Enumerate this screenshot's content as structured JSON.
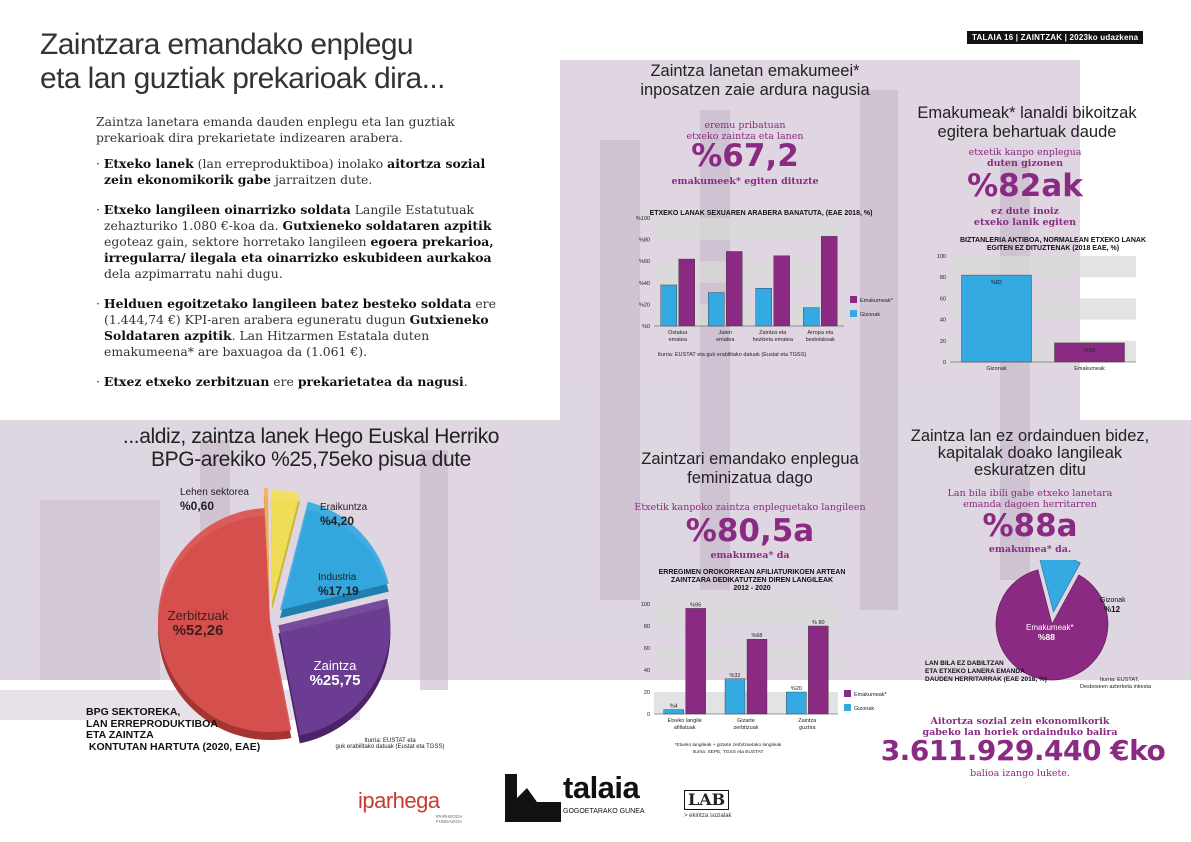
{
  "header": {
    "tag": "TALAIA 16 | ZAINTZAK | 2023ko udazkena"
  },
  "intro": {
    "title_line1": "Zaintzara emandako enplegu",
    "title_line2": "eta lan guztiak prekarioak dira...",
    "lead": "Zaintza lanetara emanda dauden enplegu eta lan guztiak prekarioak dira prekarietate indizearen arabera.",
    "b1": [
      {
        "t": "Etxeko lanek",
        "b": true
      },
      {
        "t": " (lan erreproduktiboa) inolako ",
        "b": false
      },
      {
        "t": "aitortza sozial zein ekonomikorik gabe",
        "b": true
      },
      {
        "t": " jarraitzen dute.",
        "b": false
      }
    ],
    "b2": [
      {
        "t": "Etxeko langileen oinarrizko soldata",
        "b": true
      },
      {
        "t": " Langile Estatutuak zehazturiko 1.080 €-koa da. ",
        "b": false
      },
      {
        "t": "Gutxieneko soldataren azpitik",
        "b": true
      },
      {
        "t": " egoteaz gain, sektore horretako langileen ",
        "b": false
      },
      {
        "t": "egoera prekarioa, irregularra/ ilegala eta oinarrizko eskubideen aurkakoa",
        "b": true
      },
      {
        "t": " dela azpimarratu nahi dugu.",
        "b": false
      }
    ],
    "b3": [
      {
        "t": "Helduen egoitzetako langileen batez besteko soldata",
        "b": true
      },
      {
        "t": " ere (1.444,74 €) KPI-aren arabera eguneratu dugun ",
        "b": false
      },
      {
        "t": "Gutxieneko Soldataren azpitik",
        "b": true
      },
      {
        "t": ". Lan Hitzarmen Estatala duten emakumeena* are baxuagoa da (1.061 €).",
        "b": false
      }
    ],
    "b4": [
      {
        "t": "Etxez etxeko zerbitzuan",
        "b": true
      },
      {
        "t": " ere ",
        "b": false
      },
      {
        "t": "prekarietatea da nagusi",
        "b": true
      },
      {
        "t": ".",
        "b": false
      }
    ]
  },
  "pie_section": {
    "title_line1": "...aldiz, zaintza lanek Hego Euskal Herriko",
    "title_line2": "BPG-arekiko %25,75eko pisua dute",
    "bottom_label": [
      "BPG SEKTOREKA,",
      "LAN ERREPRODUKTIBOA",
      "ETA ZAINTZA",
      " KONTUTAN HARTUTA (2020, EAE)"
    ],
    "source": [
      "Iturria:  EUSTAT eta",
      "guk erabilitako datuak (Eustat eta TGSS)"
    ]
  },
  "women_care": {
    "title_line1": "Zaintza lanetan emakumeei*",
    "title_line2": "inposatzen zaie ardura nagusia",
    "sub1": "eremu pribatuan",
    "sub2": "etxeko zaintza eta lanen",
    "big": "%67,2",
    "sub3": "emakumeek* egiten dituzte",
    "source": "Iturria:  EUSTAT eta guk erabilitako datuak (Eustat eta TGSS)"
  },
  "double_shift": {
    "title_line1": "Emakumeak* lanaldi bikoitzak",
    "title_line2": "egitera behartuak daude",
    "sub1": "etxetik kanpo enplegua",
    "sub2": "duten gizonen",
    "big": "%82ak",
    "sub3": "ez dute inoiz",
    "sub4": "etxeko lanik egiten"
  },
  "feminized": {
    "title_line1": "Zaintzari emandako enplegua",
    "title_line2": "feminizatua dago",
    "sub1": "Etxetik kanpoko zaintza enpleguetako langileen",
    "big": "%80,5a",
    "sub2": "emakumea* da",
    "footnote1": "*Etxeko langileak + gizarte zerbitzuetako langileak",
    "footnote2": "Iturria:  SEPE, TGSS eta EUSTAT"
  },
  "unpaid": {
    "title_line1": "Zaintza lan ez ordainduen bidez,",
    "title_line2": "kapitalak doako langileak",
    "title_line3": "eskuratzen ditu",
    "sub1": "Lan bila ibili gabe etxeko lanetara",
    "sub2": "emanda dagoen herritarren",
    "big": "%88a",
    "sub3": "emakumea* da.",
    "caption": [
      "LAN BILA EZ DABILTZAN",
      "ETA ETXEKO LANERA EMANDA",
      "DAUDEN HERRITARRAK (EAE 2018, %)"
    ],
    "source1": "Iturria: EUSTAT,",
    "source2": "Desboseen azterketa inkesta"
  },
  "value": {
    "line1": "Aitortza sozial zein ekonomikorik",
    "line2": "gabeko lan horiek ordainduko balira",
    "amount": "3.611.929.440 €ko",
    "line3": "balioa izango lukete."
  },
  "logos": {
    "iparhegoa_a": "iparheg",
    "iparhegoa_b": "a",
    "iparhegoa_small": [
      "IPARHEGOA",
      "FUNDAZIOA"
    ],
    "talaia": "talaia",
    "talaia_sub": "GOGOETARAKO GUNEA",
    "lab": "LAB",
    "lab_sub": "> ekintza sozialak"
  },
  "colors": {
    "purple": "#8a2a82",
    "blue": "#35a9e1",
    "red": "#d9534f",
    "yellow": "#f3e05a",
    "orange": "#f2b25a",
    "violet": "#6e3f96"
  },
  "chart_data": [
    {
      "type": "pie",
      "title": "BPG SEKTOREKA, LAN ERREPRODUKTIBOA ETA ZAINTZA KONTUTAN HARTUTA (2020, EAE)",
      "slices": [
        {
          "name": "Lehen sektorea",
          "value_label": "%0,60",
          "value": 0.6
        },
        {
          "name": "Eraikuntza",
          "value_label": "%4,20",
          "value": 4.2
        },
        {
          "name": "Industria",
          "value_label": "%17,19",
          "value": 17.19
        },
        {
          "name": "Zaintza",
          "value_label": "%25,75",
          "value": 25.75
        },
        {
          "name": "Zerbitzuak",
          "value_label": "%52,26",
          "value": 52.26
        }
      ]
    },
    {
      "type": "bar",
      "title": "ETXEKO LANAK SEXUAREN ARABERA BANATUTA, (EAE 2018, %)",
      "categories": [
        "Ostatua ematea",
        "Jaten ematea",
        "Zaintza eta hezkieta ematea",
        "Arropa eta bestelakoak"
      ],
      "cat_lines": [
        [
          "Ostatua",
          "ematea"
        ],
        [
          "Jaten",
          "ematea"
        ],
        [
          "Zaintza eta",
          "hezkieta ematea"
        ],
        [
          "Arropa eta",
          "bestelakoak"
        ]
      ],
      "series": [
        {
          "name": "Emakumeak*",
          "values": [
            62,
            69,
            65,
            83
          ]
        },
        {
          "name": "Gizonak",
          "values": [
            38,
            31,
            35,
            17
          ]
        }
      ],
      "yticks": [
        "%0",
        "%20",
        "%40",
        "%60",
        "%80",
        "%100"
      ],
      "ylim": [
        0,
        100
      ]
    },
    {
      "type": "bar",
      "title": "BIZTANLERIA AKTIBOA, NORMALEAN ETXEKO LANAK EGITEN EZ DITUZTENAK (2018 EAE, %)",
      "title_lines": [
        "BIZTANLERIA AKTIBOA, NORMALEAN ETXEKO LANAK",
        "EGITEN EZ DITUZTENAK (2018 EAE, %)"
      ],
      "categories": [
        "Gizonak",
        "Emakumeak"
      ],
      "values": [
        82,
        18
      ],
      "data_labels": [
        "%82",
        "%18"
      ],
      "yticks": [
        "0",
        "20",
        "40",
        "60",
        "80",
        "100"
      ],
      "ylim": [
        0,
        100
      ]
    },
    {
      "type": "bar",
      "title": "ERREGIMEN OROKORREAN AFILIATURIKOEN ARTEAN ZAINTZARA DEDIKATUTZEN DIREN LANGILEAK 2012 - 2020",
      "title_lines": [
        "ERREGIMEN OROKORREAN AFILIATURIKOEN ARTEAN",
        "ZAINTZARA DEDIKATUTZEN DIREN LANGILEAK",
        "2012 - 2020"
      ],
      "categories": [
        "Etxeko langile afiliatuak",
        "Gizarte zerbitzuak",
        "Zaintza guztira"
      ],
      "cat_lines": [
        [
          "Etxeko langile",
          "afiliatuak"
        ],
        [
          "Gizarte",
          "zerbitzuak"
        ],
        [
          "Zaintza",
          "guztira"
        ]
      ],
      "series": [
        {
          "name": "Emakumeak*",
          "values": [
            96,
            68,
            80
          ],
          "labels": [
            "%96",
            "%68",
            "% 80"
          ]
        },
        {
          "name": "Gizonak",
          "values": [
            4,
            32,
            20
          ],
          "labels": [
            "%4",
            "%32",
            "%20"
          ]
        }
      ],
      "yticks": [
        "0",
        "20",
        "40",
        "60",
        "80",
        "100"
      ],
      "ylim": [
        0,
        100
      ]
    },
    {
      "type": "pie",
      "title": "LAN BILA EZ DABILTZAN ETA ETXEKO LANERA EMANDA DAUDEN HERRITARRAK (EAE 2018, %)",
      "slices": [
        {
          "name": "Emakumeak*",
          "value_label": "%88",
          "value": 88
        },
        {
          "name": "Gizonak",
          "value_label": "%12",
          "value": 12
        }
      ]
    }
  ]
}
